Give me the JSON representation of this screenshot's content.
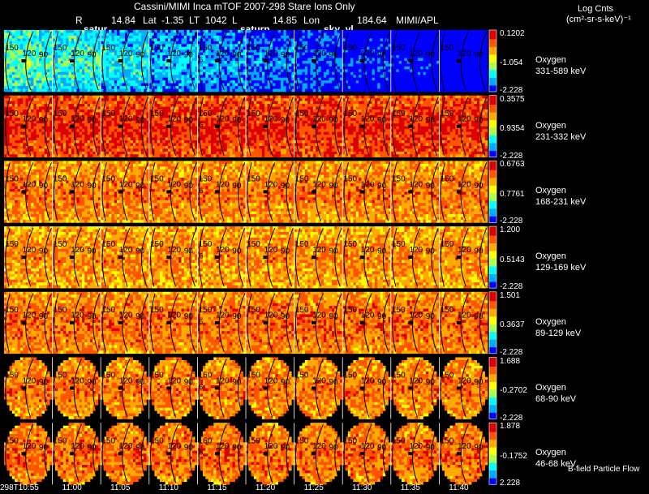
{
  "header": {
    "title": "Cassini/MIMI Inca mTOF  2007-298   Stare    Ions Only",
    "r_label": "R",
    "r_value": "14.84",
    "lat_label": "Lat",
    "lat_value": "-1.35",
    "lt_label": "LT",
    "lt_value": "1042",
    "l_label": "L",
    "l_value": "14.85",
    "lon_label": "Lon",
    "lon_value": "184.64",
    "credit": "MIMI/APL",
    "overlay_left": "satur",
    "overlay_mid": "saturn",
    "overlay_right": "sky_vl"
  },
  "colorbar_title": {
    "line1": "Log Cnts",
    "line2": "(cm²-sr-s-keV)⁻¹"
  },
  "footer_note": "B-field  Particle Flow",
  "chart_data": {
    "type": "heatmap",
    "title": "Cassini/MIMI Inca mTOF  2007-298   Stare    Ions Only",
    "x_tick_labels": [
      "298T10:55",
      "11:00",
      "11:05",
      "11:10",
      "11:15",
      "11:20",
      "11:25",
      "11:30",
      "11:35",
      "11:40"
    ],
    "contour_labels": [
      "150",
      "120",
      "90",
      "6"
    ],
    "colorscale": [
      "#0000ff",
      "#00aaff",
      "#00ffff",
      "#aaff55",
      "#ffff00",
      "#ffaa00",
      "#ff5500",
      "#dd0000"
    ],
    "rows": [
      {
        "species": "Oxygen",
        "energy": "331-589 keV",
        "cb_max": "0.1202",
        "cb_mid": "-1.054",
        "cb_min": "-2.228",
        "level": 0.38,
        "trend": 0.45
      },
      {
        "species": "Oxygen",
        "energy": "231-332 keV",
        "cb_max": "0.3575",
        "cb_mid": "0.9354",
        "cb_min": "-2.228",
        "level": 0.9,
        "trend": 0.0
      },
      {
        "species": "Oxygen",
        "energy": "168-231 keV",
        "cb_max": "0.6763",
        "cb_mid": "0.7761",
        "cb_min": "-2.228",
        "level": 0.78,
        "trend": 0.0
      },
      {
        "species": "Oxygen",
        "energy": "129-169 keV",
        "cb_max": "1.200",
        "cb_mid": "0.5143",
        "cb_min": "-2.228",
        "level": 0.75,
        "trend": 0.0
      },
      {
        "species": "Oxygen",
        "energy": "89-129 keV",
        "cb_max": "1.501",
        "cb_mid": "0.3637",
        "cb_min": "-2.228",
        "level": 0.8,
        "trend": 0.0
      },
      {
        "species": "Oxygen",
        "energy": "68-90 keV",
        "cb_max": "1.688",
        "cb_mid": "-0.2702",
        "cb_min": "-2.228",
        "level": 0.78,
        "trend": 0.0
      },
      {
        "species": "Oxygen",
        "energy": "46-68 keV",
        "cb_max": "1.878",
        "cb_mid": "-0.1752",
        "cb_min": "2.228",
        "level": 0.8,
        "trend": 0.0
      }
    ]
  }
}
